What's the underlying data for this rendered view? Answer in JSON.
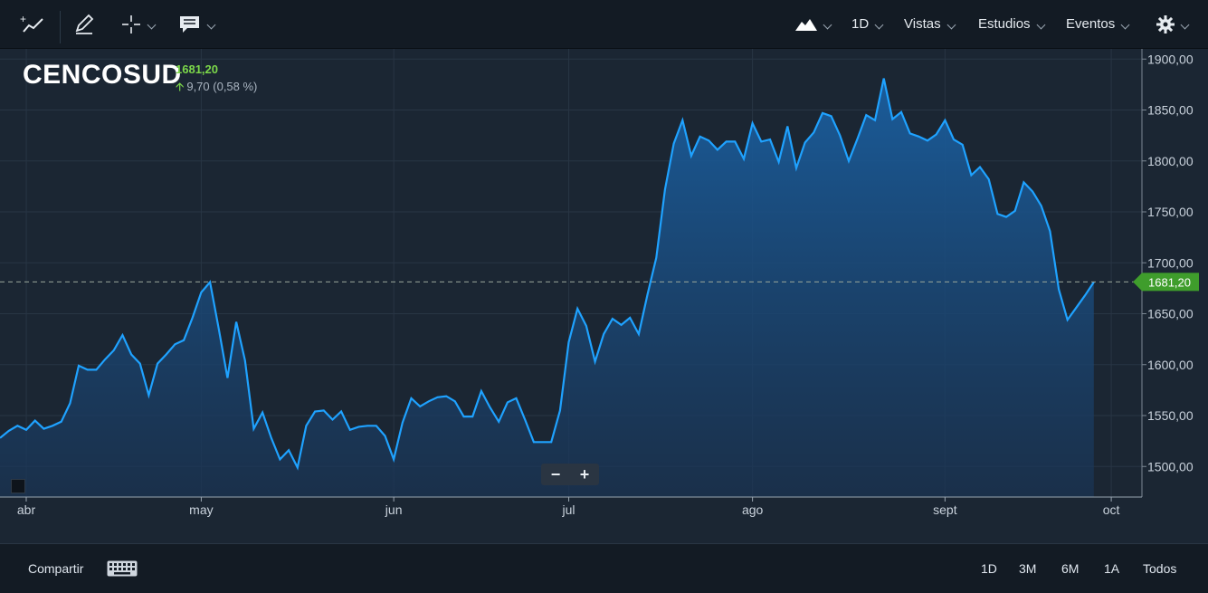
{
  "toolbar": {
    "left_icons": [
      "trend-line-icon",
      "pencil-icon",
      "crosshair-icon",
      "comment-icon"
    ],
    "interval": "1D",
    "views": "Vistas",
    "studies": "Estudios",
    "events": "Eventos"
  },
  "instrument": {
    "name": "CENCOSUD",
    "last": "1681,20",
    "change": "9,70 (0,58 %)"
  },
  "footer": {
    "share": "Compartir",
    "ranges": [
      "1D",
      "3M",
      "6M",
      "1A",
      "Todos"
    ]
  },
  "colors": {
    "line": "#1fa2ff",
    "positive": "#7cd84a",
    "badge": "#3f9d2c"
  },
  "chart_data": {
    "type": "area",
    "title": "CENCOSUD",
    "ylim": [
      1470,
      1910
    ],
    "y_ticks": [
      "1500,00",
      "1550,00",
      "1600,00",
      "1650,00",
      "1700,00",
      "1750,00",
      "1800,00",
      "1850,00",
      "1900,00"
    ],
    "y_tick_values": [
      1500,
      1550,
      1600,
      1650,
      1700,
      1750,
      1800,
      1850,
      1900
    ],
    "x_labels": [
      "abr",
      "may",
      "jun",
      "jul",
      "ago",
      "sept",
      "oct"
    ],
    "x_label_index": [
      3,
      23,
      45,
      65,
      86,
      108,
      127
    ],
    "last_price_label": "1681,20",
    "last_price_value": 1681.2,
    "series": [
      {
        "name": "CENCOSUD",
        "values": [
          1528,
          1535,
          1540,
          1536,
          1545,
          1537,
          1540,
          1544,
          1562,
          1599,
          1595,
          1595,
          1605,
          1614,
          1629,
          1610,
          1601,
          1570,
          1601,
          1610,
          1620,
          1624,
          1646,
          1671,
          1681,
          1635,
          1587,
          1642,
          1604,
          1537,
          1553,
          1528,
          1507,
          1516,
          1499,
          1540,
          1554,
          1555,
          1546,
          1554,
          1536,
          1539,
          1540,
          1540,
          1530,
          1507,
          1543,
          1567,
          1559,
          1564,
          1568,
          1569,
          1564,
          1549,
          1549,
          1574,
          1558,
          1544,
          1563,
          1567,
          1546,
          1524,
          1524,
          1524,
          1555,
          1622,
          1655,
          1638,
          1603,
          1630,
          1645,
          1639,
          1646,
          1630,
          1669,
          1705,
          1772,
          1817,
          1840,
          1805,
          1824,
          1820,
          1811,
          1819,
          1819,
          1802,
          1837,
          1819,
          1821,
          1799,
          1834,
          1793,
          1818,
          1828,
          1847,
          1844,
          1825,
          1800,
          1822,
          1845,
          1840,
          1881,
          1841,
          1848,
          1827,
          1824,
          1820,
          1826,
          1840,
          1821,
          1816,
          1786,
          1794,
          1782,
          1748,
          1745,
          1751,
          1779,
          1770,
          1756,
          1731,
          1674,
          1644,
          1656,
          1668,
          1681
        ]
      }
    ]
  }
}
